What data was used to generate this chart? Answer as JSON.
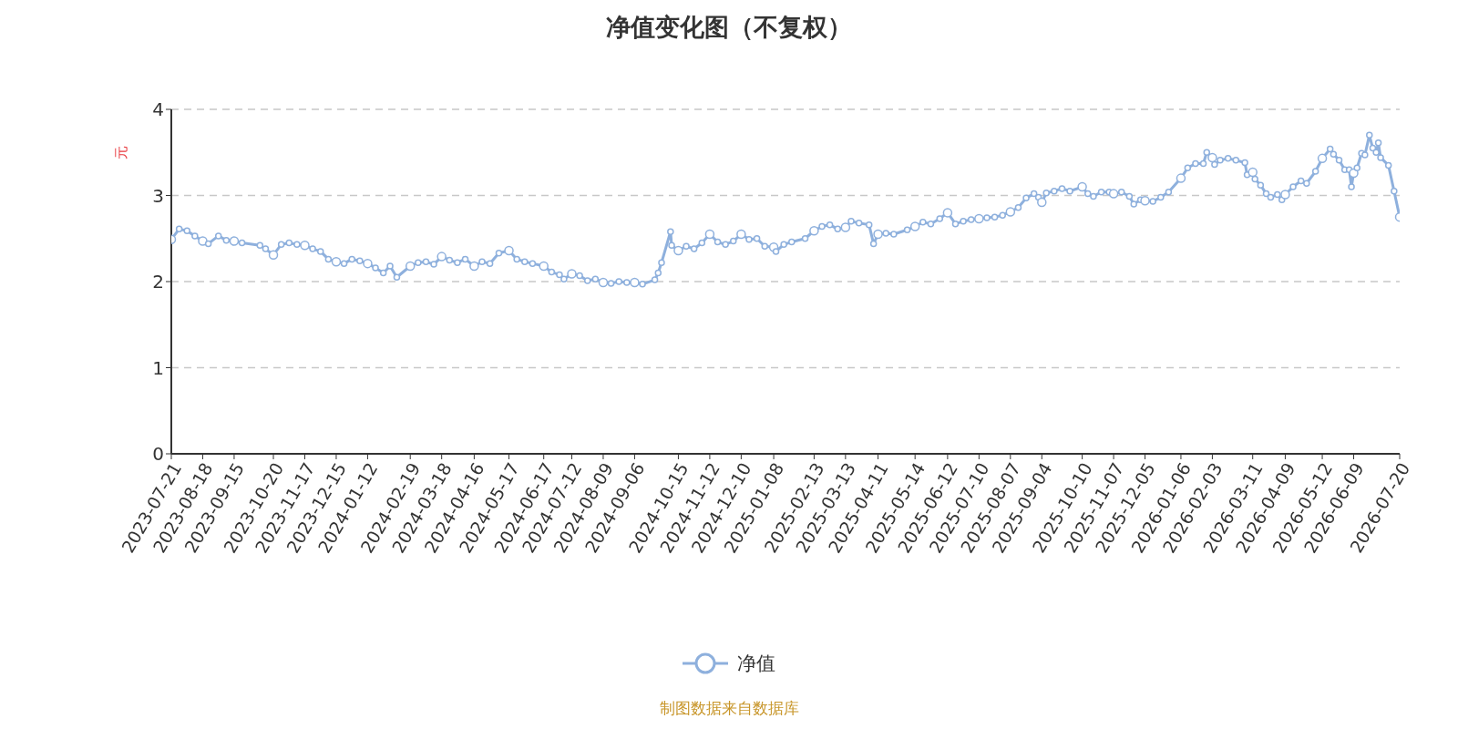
{
  "chart_data": {
    "type": "line",
    "title": "净值变化图（不复权）",
    "ylabel": "元",
    "annotations": [
      "制图数据来自数据库"
    ],
    "x": [
      "2023-07-21",
      "2023-07-28",
      "2023-08-04",
      "2023-08-11",
      "2023-08-18",
      "2023-08-23",
      "2023-09-01",
      "2023-09-08",
      "2023-09-15",
      "2023-09-22",
      "2023-10-08",
      "2023-10-13",
      "2023-10-20",
      "2023-10-27",
      "2023-11-03",
      "2023-11-10",
      "2023-11-17",
      "2023-11-24",
      "2023-12-01",
      "2023-12-08",
      "2023-12-15",
      "2023-12-22",
      "2023-12-29",
      "2024-01-05",
      "2024-01-12",
      "2024-01-19",
      "2024-01-26",
      "2024-02-01",
      "2024-02-07",
      "2024-02-19",
      "2024-02-26",
      "2024-03-04",
      "2024-03-11",
      "2024-03-18",
      "2024-03-25",
      "2024-04-01",
      "2024-04-08",
      "2024-04-16",
      "2024-04-23",
      "2024-04-30",
      "2024-05-08",
      "2024-05-17",
      "2024-05-24",
      "2024-05-31",
      "2024-06-07",
      "2024-06-17",
      "2024-06-24",
      "2024-07-01",
      "2024-07-05",
      "2024-07-12",
      "2024-07-19",
      "2024-07-26",
      "2024-08-02",
      "2024-08-09",
      "2024-08-16",
      "2024-08-23",
      "2024-08-30",
      "2024-09-06",
      "2024-09-13",
      "2024-09-24",
      "2024-09-27",
      "2024-09-30",
      "2024-10-08",
      "2024-10-09",
      "2024-10-15",
      "2024-10-22",
      "2024-10-29",
      "2024-11-05",
      "2024-11-12",
      "2024-11-19",
      "2024-11-26",
      "2024-12-03",
      "2024-12-10",
      "2024-12-17",
      "2024-12-24",
      "2024-12-31",
      "2025-01-08",
      "2025-01-10",
      "2025-01-17",
      "2025-01-24",
      "2025-02-05",
      "2025-02-13",
      "2025-02-20",
      "2025-02-27",
      "2025-03-06",
      "2025-03-13",
      "2025-03-18",
      "2025-03-25",
      "2025-04-03",
      "2025-04-07",
      "2025-04-11",
      "2025-04-18",
      "2025-04-25",
      "2025-05-07",
      "2025-05-14",
      "2025-05-21",
      "2025-05-28",
      "2025-06-05",
      "2025-06-12",
      "2025-06-19",
      "2025-06-26",
      "2025-07-03",
      "2025-07-10",
      "2025-07-17",
      "2025-07-24",
      "2025-07-31",
      "2025-08-07",
      "2025-08-14",
      "2025-08-21",
      "2025-08-28",
      "2025-09-01",
      "2025-09-04",
      "2025-09-08",
      "2025-09-15",
      "2025-09-22",
      "2025-09-29",
      "2025-10-10",
      "2025-10-15",
      "2025-10-20",
      "2025-10-27",
      "2025-11-03",
      "2025-11-07",
      "2025-11-14",
      "2025-11-21",
      "2025-11-25",
      "2025-12-01",
      "2025-12-05",
      "2025-12-12",
      "2025-12-19",
      "2025-12-26",
      "2026-01-06",
      "2026-01-12",
      "2026-01-19",
      "2026-01-26",
      "2026-01-29",
      "2026-02-03",
      "2026-02-05",
      "2026-02-10",
      "2026-02-17",
      "2026-02-24",
      "2026-03-04",
      "2026-03-06",
      "2026-03-11",
      "2026-03-13",
      "2026-03-18",
      "2026-03-23",
      "2026-03-27",
      "2026-04-02",
      "2026-04-06",
      "2026-04-09",
      "2026-04-16",
      "2026-04-23",
      "2026-04-28",
      "2026-05-06",
      "2026-05-12",
      "2026-05-19",
      "2026-05-22",
      "2026-05-27",
      "2026-06-01",
      "2026-06-05",
      "2026-06-07",
      "2026-06-09",
      "2026-06-12",
      "2026-06-16",
      "2026-06-19",
      "2026-06-23",
      "2026-06-26",
      "2026-06-29",
      "2026-07-01",
      "2026-07-03",
      "2026-07-10",
      "2026-07-15",
      "2026-07-20"
    ],
    "series": [
      {
        "name": "净值",
        "color": "#8eb0dd",
        "values": [
          2.49,
          2.61,
          2.59,
          2.53,
          2.47,
          2.44,
          2.53,
          2.48,
          2.47,
          2.45,
          2.42,
          2.38,
          2.31,
          2.43,
          2.45,
          2.43,
          2.42,
          2.38,
          2.35,
          2.26,
          2.23,
          2.21,
          2.26,
          2.24,
          2.21,
          2.16,
          2.1,
          2.18,
          2.05,
          2.18,
          2.22,
          2.23,
          2.2,
          2.29,
          2.25,
          2.22,
          2.26,
          2.18,
          2.23,
          2.21,
          2.33,
          2.36,
          2.26,
          2.23,
          2.21,
          2.18,
          2.11,
          2.08,
          2.03,
          2.09,
          2.07,
          2.01,
          2.03,
          1.99,
          1.98,
          2.0,
          1.99,
          1.99,
          1.97,
          2.02,
          2.1,
          2.22,
          2.58,
          2.42,
          2.36,
          2.41,
          2.38,
          2.45,
          2.55,
          2.46,
          2.43,
          2.47,
          2.55,
          2.49,
          2.5,
          2.41,
          2.4,
          2.35,
          2.43,
          2.46,
          2.5,
          2.59,
          2.64,
          2.66,
          2.61,
          2.63,
          2.7,
          2.68,
          2.66,
          2.44,
          2.55,
          2.56,
          2.55,
          2.6,
          2.64,
          2.69,
          2.67,
          2.73,
          2.8,
          2.67,
          2.7,
          2.72,
          2.73,
          2.74,
          2.75,
          2.77,
          2.81,
          2.86,
          2.97,
          3.02,
          2.98,
          2.92,
          3.03,
          3.05,
          3.08,
          3.05,
          3.1,
          3.02,
          2.99,
          3.04,
          3.04,
          3.02,
          3.04,
          2.99,
          2.9,
          2.95,
          2.94,
          2.93,
          2.98,
          3.04,
          3.2,
          3.32,
          3.37,
          3.37,
          3.5,
          3.44,
          3.36,
          3.41,
          3.43,
          3.41,
          3.38,
          3.24,
          3.27,
          3.19,
          3.12,
          3.02,
          2.98,
          3.01,
          2.95,
          3.01,
          3.1,
          3.17,
          3.14,
          3.28,
          3.43,
          3.54,
          3.48,
          3.41,
          3.3,
          3.3,
          3.1,
          3.26,
          3.32,
          3.49,
          3.47,
          3.7,
          3.55,
          3.5,
          3.61,
          3.44,
          3.35,
          3.05,
          2.75
        ]
      }
    ],
    "xlim": [
      "2023-07-21",
      "2026-07-20"
    ],
    "xticks": [
      "2023-07-21",
      "2023-08-18",
      "2023-09-15",
      "2023-10-20",
      "2023-11-17",
      "2023-12-15",
      "2024-01-12",
      "2024-02-19",
      "2024-03-18",
      "2024-04-16",
      "2024-05-17",
      "2024-06-17",
      "2024-07-12",
      "2024-08-09",
      "2024-09-06",
      "2024-10-15",
      "2024-11-12",
      "2024-12-10",
      "2025-01-08",
      "2025-02-13",
      "2025-03-13",
      "2025-04-11",
      "2025-05-14",
      "2025-06-12",
      "2025-07-10",
      "2025-08-07",
      "2025-09-04",
      "2025-10-10",
      "2025-11-07",
      "2025-12-05",
      "2026-01-06",
      "2026-02-03",
      "2026-03-11",
      "2026-04-09",
      "2026-05-12",
      "2026-06-09",
      "2026-07-20"
    ],
    "ylim": [
      0,
      4
    ],
    "yticks": [
      0,
      1,
      2,
      3,
      4
    ],
    "grid": "y",
    "legend": "bottom",
    "marker": "circle",
    "line_style": "solid"
  }
}
